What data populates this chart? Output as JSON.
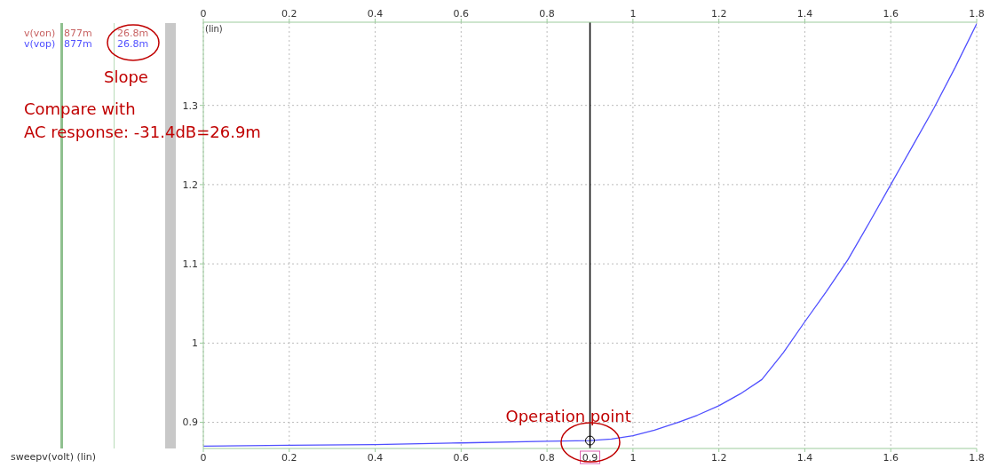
{
  "chart_data": {
    "type": "line",
    "ylabel": "(lin)",
    "x": [
      0,
      0.2,
      0.4,
      0.6,
      0.8,
      0.9,
      0.95,
      1.0,
      1.05,
      1.1,
      1.15,
      1.2,
      1.25,
      1.3,
      1.35,
      1.4,
      1.45,
      1.5,
      1.55,
      1.6,
      1.65,
      1.7,
      1.75,
      1.8
    ],
    "series": [
      {
        "name": "v(von)",
        "color": "#c86464",
        "values": [
          null,
          null,
          null,
          null,
          null,
          null,
          null,
          null,
          null,
          null,
          null,
          null,
          null,
          null,
          null,
          null,
          null,
          null,
          null,
          null,
          null,
          null,
          null,
          null
        ]
      },
      {
        "name": "v(vop)",
        "color": "#5050ff",
        "values": [
          0.87,
          0.871,
          0.872,
          0.874,
          0.876,
          0.877,
          0.879,
          0.883,
          0.89,
          0.899,
          0.909,
          0.921,
          0.936,
          0.954,
          0.988,
          1.027,
          1.065,
          1.105,
          1.152,
          1.2,
          1.248,
          1.296,
          1.348,
          1.403
        ]
      }
    ],
    "xlim": [
      0,
      1.8
    ],
    "xticks": [
      0,
      0.2,
      0.4,
      0.6,
      0.8,
      1,
      1.2,
      1.4,
      1.6,
      1.8
    ],
    "x2lim": [
      0,
      1.8
    ],
    "x2ticks": [
      0,
      0.2,
      0.4,
      0.6,
      0.8,
      1,
      1.2,
      1.4,
      1.6,
      1.8
    ],
    "ylim": [
      0.867,
      1.405
    ],
    "yticks": [
      0.9,
      1,
      1.1,
      1.2,
      1.3
    ],
    "grid": true,
    "legend": "left",
    "marker": "none",
    "line_style": "solid",
    "ref_lines": [
      {
        "axis": "x",
        "value": 0.9,
        "label": "0.9",
        "color": "#000000"
      }
    ],
    "annotations": [
      "877m",
      "26.8m",
      "877m",
      "26.8m",
      "Slope",
      "Compare with\nAC response: -31.4dB=26.9m",
      "sweepv(volt) (lin)",
      {
        "text": "Operation point",
        "x": 0.9,
        "y": 0.877
      }
    ]
  }
}
